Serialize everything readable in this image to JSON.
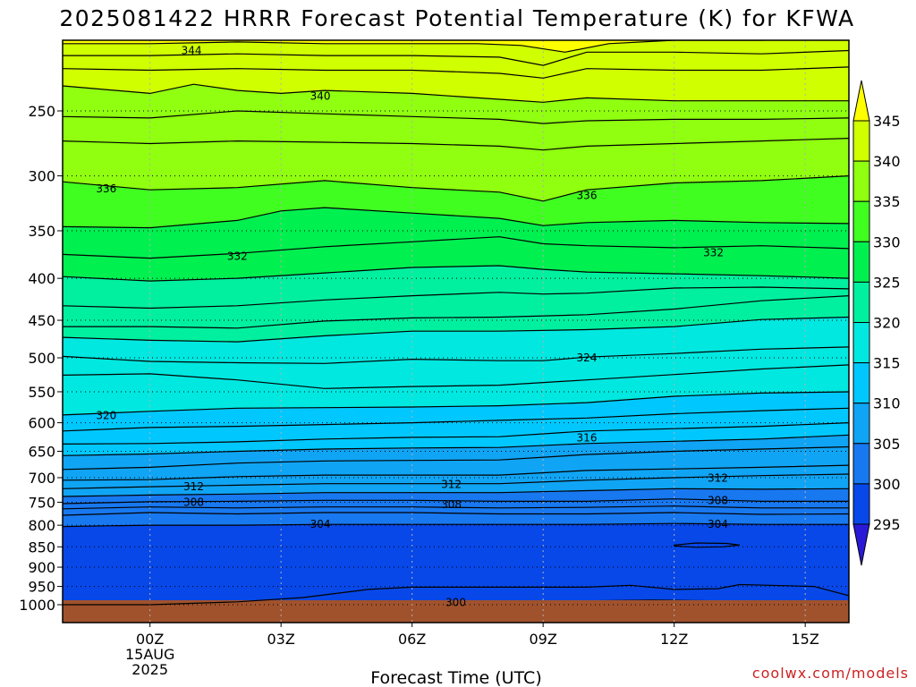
{
  "title": "2025081422 HRRR Forecast Potential Temperature (K) for KFWA",
  "credit": "coolwx.com/models",
  "colors": {
    "ground": "#a0522d",
    "bands": [
      "#2020d0",
      "#0848e8",
      "#1878f0",
      "#10a4f4",
      "#00c8ff",
      "#00e8e0",
      "#00f0a0",
      "#00f050",
      "#40ff20",
      "#90ff10",
      "#d0ff00",
      "#ffff00"
    ]
  },
  "chart_data": {
    "type": "contour",
    "title": "2025081422 HRRR Forecast Potential Temperature (K) for KFWA",
    "xlabel": "Forecast Time (UTC)",
    "ylabel": "",
    "x_ticks": [
      {
        "label": "00Z",
        "hours": 0
      },
      {
        "label": "03Z",
        "hours": 3
      },
      {
        "label": "06Z",
        "hours": 6
      },
      {
        "label": "09Z",
        "hours": 9
      },
      {
        "label": "12Z",
        "hours": 12
      },
      {
        "label": "15Z",
        "hours": 15
      }
    ],
    "x_date_label": [
      "15AUG",
      "2025"
    ],
    "xlim_hours": [
      -2,
      16
    ],
    "y_ticks": [
      250,
      300,
      350,
      400,
      450,
      500,
      550,
      600,
      650,
      700,
      750,
      800,
      850,
      900,
      950,
      1000
    ],
    "ylim": [
      1000,
      200
    ],
    "y_scale": "log",
    "grid": "dotted",
    "colorbar": {
      "levels": [
        295,
        300,
        305,
        310,
        315,
        320,
        325,
        330,
        335,
        340,
        345
      ],
      "labels": [
        "295",
        "300",
        "305",
        "310",
        "315",
        "320",
        "325",
        "330",
        "335",
        "340",
        "345"
      ],
      "extend": "both"
    },
    "contours": [
      {
        "value": 344,
        "label": "344",
        "pts": [
          [
            -2,
            207
          ],
          [
            0,
            207
          ],
          [
            2,
            206
          ],
          [
            4,
            207
          ],
          [
            6,
            207
          ],
          [
            7.5,
            207
          ],
          [
            8.5,
            208
          ],
          [
            9.5,
            212
          ],
          [
            10.5,
            207
          ],
          [
            12,
            205
          ],
          [
            14,
            205
          ],
          [
            16,
            204
          ]
        ]
      },
      {
        "value": 342,
        "pts": [
          [
            -2,
            214
          ],
          [
            0,
            214
          ],
          [
            2,
            213
          ],
          [
            4,
            214
          ],
          [
            6,
            214
          ],
          [
            8,
            215
          ],
          [
            9,
            220
          ],
          [
            10,
            212
          ],
          [
            12,
            212
          ],
          [
            14,
            213
          ],
          [
            16,
            211
          ]
        ]
      },
      {
        "value": 341,
        "pts": [
          [
            -2,
            222
          ],
          [
            0,
            223
          ],
          [
            2,
            222
          ],
          [
            4,
            223
          ],
          [
            6,
            223
          ],
          [
            8,
            225
          ],
          [
            9,
            228
          ],
          [
            10,
            222
          ],
          [
            12,
            223
          ],
          [
            14,
            223
          ],
          [
            16,
            221
          ]
        ]
      },
      {
        "value": 340,
        "label": "340",
        "pts": [
          [
            -2,
            233
          ],
          [
            0,
            238
          ],
          [
            1,
            232
          ],
          [
            2,
            236
          ],
          [
            3,
            238
          ],
          [
            4,
            236
          ],
          [
            6,
            238
          ],
          [
            8,
            242
          ],
          [
            9,
            244
          ],
          [
            10,
            241
          ],
          [
            12,
            243
          ],
          [
            14,
            243
          ],
          [
            16,
            243
          ]
        ]
      },
      {
        "value": 339,
        "pts": [
          [
            -2,
            254
          ],
          [
            0,
            255
          ],
          [
            2,
            250
          ],
          [
            4,
            252
          ],
          [
            6,
            254
          ],
          [
            8,
            256
          ],
          [
            9,
            259
          ],
          [
            10,
            257
          ],
          [
            12,
            256
          ],
          [
            14,
            256
          ],
          [
            16,
            255
          ]
        ]
      },
      {
        "value": 338,
        "pts": [
          [
            -2,
            272
          ],
          [
            0,
            274
          ],
          [
            2,
            272
          ],
          [
            4,
            273
          ],
          [
            6,
            274
          ],
          [
            8,
            276
          ],
          [
            9,
            279
          ],
          [
            10,
            276
          ],
          [
            12,
            274
          ],
          [
            14,
            272
          ],
          [
            16,
            270
          ]
        ]
      },
      {
        "value": 336,
        "label": "336",
        "pts": [
          [
            -2,
            305
          ],
          [
            0,
            312
          ],
          [
            2,
            310
          ],
          [
            4,
            304
          ],
          [
            6,
            310
          ],
          [
            8,
            314
          ],
          [
            9,
            322
          ],
          [
            10,
            312
          ],
          [
            12,
            306
          ],
          [
            14,
            304
          ],
          [
            16,
            300
          ]
        ]
      },
      {
        "value": 334,
        "pts": [
          [
            -2,
            346
          ],
          [
            0,
            347
          ],
          [
            2,
            340
          ],
          [
            3,
            331
          ],
          [
            4,
            328
          ],
          [
            6,
            333
          ],
          [
            8,
            338
          ],
          [
            9,
            345
          ],
          [
            10,
            342
          ],
          [
            12,
            340
          ],
          [
            14,
            342
          ],
          [
            16,
            343
          ]
        ]
      },
      {
        "value": 332,
        "label": "332",
        "pts": [
          [
            -2,
            374
          ],
          [
            0,
            378
          ],
          [
            2,
            373
          ],
          [
            4,
            366
          ],
          [
            6,
            361
          ],
          [
            8,
            356
          ],
          [
            9,
            363
          ],
          [
            10,
            365
          ],
          [
            12,
            367
          ],
          [
            14,
            365
          ],
          [
            16,
            368
          ]
        ]
      },
      {
        "value": 330,
        "pts": [
          [
            -2,
            398
          ],
          [
            0,
            403
          ],
          [
            2,
            400
          ],
          [
            4,
            394
          ],
          [
            6,
            388
          ],
          [
            8,
            386
          ],
          [
            9,
            390
          ],
          [
            10,
            393
          ],
          [
            12,
            395
          ],
          [
            14,
            397
          ],
          [
            16,
            400
          ]
        ]
      },
      {
        "value": 328,
        "pts": [
          [
            -2,
            432
          ],
          [
            0,
            435
          ],
          [
            2,
            432
          ],
          [
            4,
            425
          ],
          [
            6,
            420
          ],
          [
            8,
            416
          ],
          [
            9,
            418
          ],
          [
            10,
            417
          ],
          [
            12,
            411
          ],
          [
            14,
            410
          ],
          [
            16,
            412
          ]
        ]
      },
      {
        "value": 326,
        "pts": [
          [
            -2,
            458
          ],
          [
            0,
            458
          ],
          [
            2,
            460
          ],
          [
            4,
            451
          ],
          [
            6,
            447
          ],
          [
            8,
            446
          ],
          [
            10,
            443
          ],
          [
            12,
            436
          ],
          [
            14,
            426
          ],
          [
            16,
            420
          ]
        ]
      },
      {
        "value": 325,
        "pts": [
          [
            -2,
            472
          ],
          [
            0,
            476
          ],
          [
            2,
            478
          ],
          [
            4,
            470
          ],
          [
            6,
            464
          ],
          [
            8,
            464
          ],
          [
            10,
            462
          ],
          [
            12,
            458
          ],
          [
            14,
            449
          ],
          [
            16,
            446
          ]
        ]
      },
      {
        "value": 324,
        "label": "324",
        "pts": [
          [
            -2,
            498
          ],
          [
            0,
            505
          ],
          [
            2,
            507
          ],
          [
            4,
            508
          ],
          [
            6,
            502
          ],
          [
            8,
            504
          ],
          [
            9,
            504
          ],
          [
            10,
            499
          ],
          [
            12,
            494
          ],
          [
            14,
            488
          ],
          [
            16,
            485
          ]
        ]
      },
      {
        "value": 322,
        "pts": [
          [
            -2,
            525
          ],
          [
            0,
            523
          ],
          [
            2,
            532
          ],
          [
            4,
            545
          ],
          [
            6,
            542
          ],
          [
            8,
            540
          ],
          [
            10,
            532
          ],
          [
            12,
            524
          ],
          [
            14,
            516
          ],
          [
            16,
            510
          ]
        ]
      },
      {
        "value": 320,
        "label": "320",
        "pts": [
          [
            -2,
            587
          ],
          [
            0,
            581
          ],
          [
            2,
            576
          ],
          [
            4,
            575
          ],
          [
            6,
            574
          ],
          [
            8,
            572
          ],
          [
            10,
            567
          ],
          [
            12,
            557
          ],
          [
            14,
            552
          ],
          [
            16,
            550
          ]
        ]
      },
      {
        "value": 318,
        "pts": [
          [
            -2,
            614
          ],
          [
            0,
            608
          ],
          [
            2,
            606
          ],
          [
            4,
            603
          ],
          [
            6,
            600
          ],
          [
            8,
            596
          ],
          [
            10,
            592
          ],
          [
            12,
            585
          ],
          [
            14,
            580
          ],
          [
            16,
            576
          ]
        ]
      },
      {
        "value": 316,
        "label": "316",
        "pts": [
          [
            -2,
            637
          ],
          [
            0,
            636
          ],
          [
            2,
            633
          ],
          [
            4,
            628
          ],
          [
            6,
            625
          ],
          [
            8,
            624
          ],
          [
            10,
            614
          ],
          [
            12,
            610
          ],
          [
            14,
            606
          ],
          [
            16,
            600
          ]
        ]
      },
      {
        "value": 315,
        "pts": [
          [
            -2,
            658
          ],
          [
            0,
            655
          ],
          [
            2,
            650
          ],
          [
            4,
            646
          ],
          [
            6,
            644
          ],
          [
            8,
            643
          ],
          [
            10,
            636
          ],
          [
            12,
            632
          ],
          [
            14,
            628
          ],
          [
            16,
            621
          ]
        ]
      },
      {
        "value": 314,
        "pts": [
          [
            -2,
            684
          ],
          [
            0,
            680
          ],
          [
            2,
            672
          ],
          [
            4,
            668
          ],
          [
            6,
            667
          ],
          [
            8,
            666
          ],
          [
            10,
            656
          ],
          [
            12,
            650
          ],
          [
            14,
            646
          ],
          [
            16,
            642
          ]
        ]
      },
      {
        "value": 313,
        "pts": [
          [
            -2,
            705
          ],
          [
            0,
            704
          ],
          [
            2,
            698
          ],
          [
            4,
            695
          ],
          [
            6,
            695
          ],
          [
            8,
            695
          ],
          [
            10,
            686
          ],
          [
            12,
            683
          ],
          [
            14,
            680
          ],
          [
            16,
            676
          ]
        ]
      },
      {
        "value": 312,
        "label": "312",
        "pts": [
          [
            -2,
            722
          ],
          [
            0,
            718
          ],
          [
            2,
            715
          ],
          [
            4,
            712
          ],
          [
            6,
            712
          ],
          [
            8,
            712
          ],
          [
            10,
            705
          ],
          [
            12,
            700
          ],
          [
            14,
            696
          ],
          [
            16,
            693
          ]
        ]
      },
      {
        "value": 310,
        "pts": [
          [
            -2,
            738
          ],
          [
            0,
            735
          ],
          [
            2,
            733
          ],
          [
            4,
            730
          ],
          [
            6,
            730
          ],
          [
            8,
            730
          ],
          [
            10,
            726
          ],
          [
            12,
            722
          ],
          [
            14,
            723
          ],
          [
            16,
            722
          ]
        ]
      },
      {
        "value": 308,
        "label": "308",
        "pts": [
          [
            -2,
            753
          ],
          [
            0,
            749
          ],
          [
            2,
            748
          ],
          [
            4,
            746
          ],
          [
            6,
            746
          ],
          [
            8,
            748
          ],
          [
            10,
            748
          ],
          [
            12,
            743
          ],
          [
            14,
            748
          ],
          [
            16,
            748
          ]
        ]
      },
      {
        "value": 307,
        "pts": [
          [
            -2,
            764
          ],
          [
            0,
            760
          ],
          [
            2,
            762
          ],
          [
            4,
            760
          ],
          [
            6,
            760
          ],
          [
            8,
            762
          ],
          [
            10,
            761
          ],
          [
            12,
            758
          ],
          [
            14,
            762
          ],
          [
            16,
            762
          ]
        ]
      },
      {
        "value": 306,
        "pts": [
          [
            -2,
            778
          ],
          [
            0,
            772
          ],
          [
            2,
            775
          ],
          [
            4,
            772
          ],
          [
            6,
            772
          ],
          [
            8,
            775
          ],
          [
            10,
            775
          ],
          [
            12,
            772
          ],
          [
            14,
            776
          ],
          [
            16,
            775
          ]
        ]
      },
      {
        "value": 304,
        "label": "304",
        "pts": [
          [
            -2,
            803
          ],
          [
            0,
            800
          ],
          [
            2,
            800
          ],
          [
            4,
            798
          ],
          [
            6,
            798
          ],
          [
            8,
            798
          ],
          [
            10,
            798
          ],
          [
            12,
            796
          ],
          [
            14,
            798
          ],
          [
            16,
            798
          ]
        ]
      }
    ]
  }
}
